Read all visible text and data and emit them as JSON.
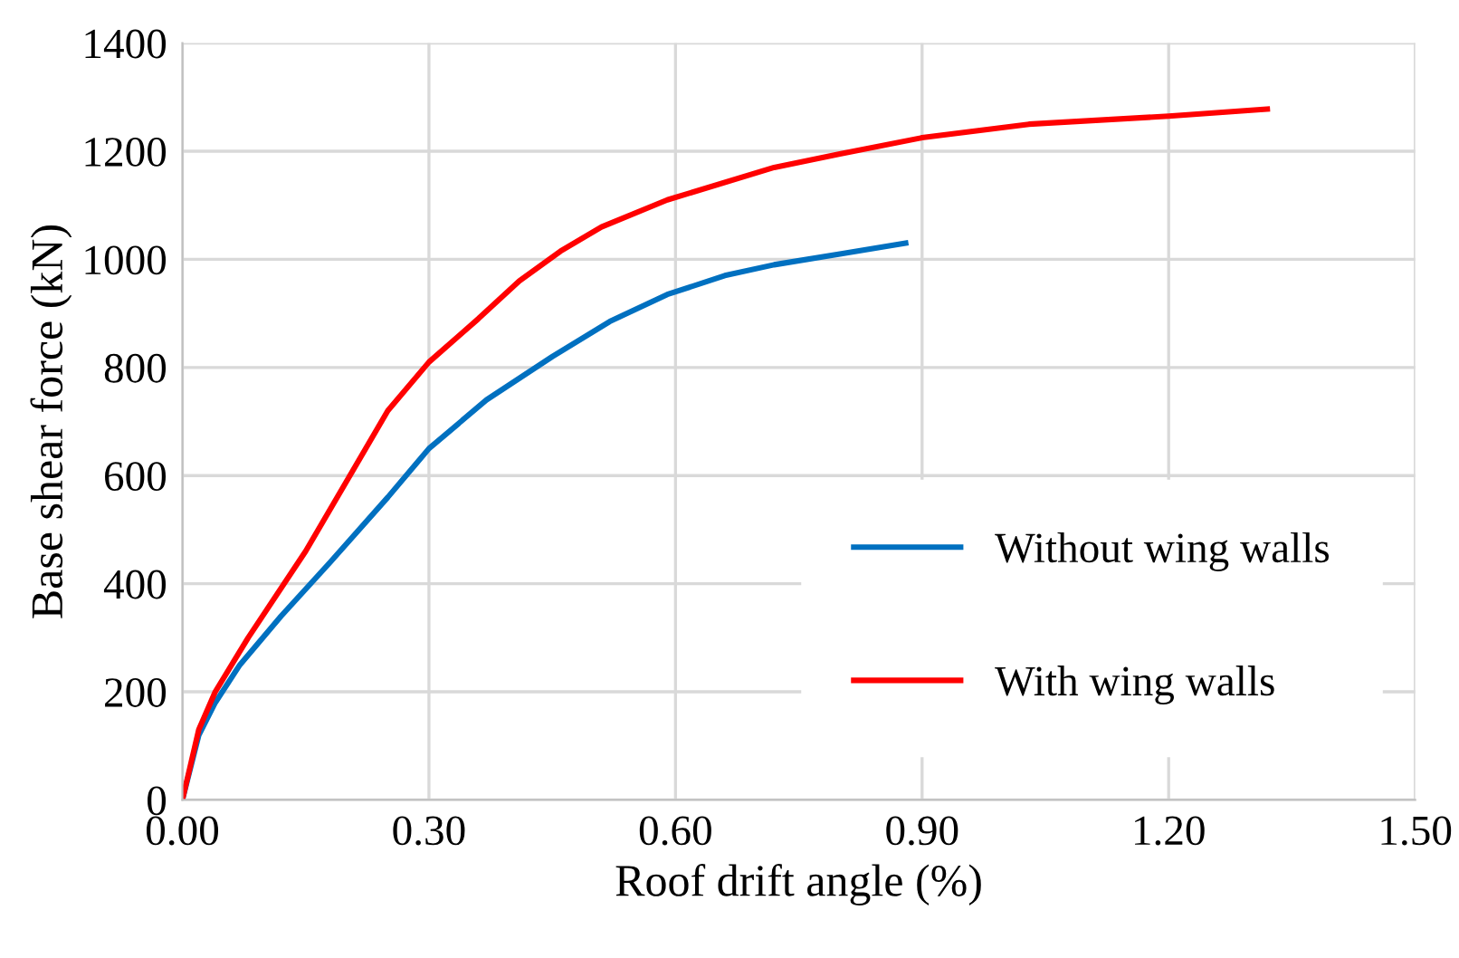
{
  "chart_data": {
    "type": "line",
    "xlabel": "Roof drift angle (%)",
    "ylabel": "Base shear force (kN)",
    "xlim": [
      0,
      1.5
    ],
    "xticks": [
      {
        "value": 0,
        "label": "0.00"
      },
      {
        "value": 0.3,
        "label": "0.30"
      },
      {
        "value": 0.6,
        "label": "0.60"
      },
      {
        "value": 0.9,
        "label": "0.90"
      },
      {
        "value": 1.2,
        "label": "1.20"
      },
      {
        "value": 1.5,
        "label": "1.50"
      }
    ],
    "ylim": [
      0,
      1400
    ],
    "yticks": [
      0,
      200,
      400,
      600,
      800,
      1000,
      1200,
      1400
    ],
    "grid": true,
    "legend": "bottom right",
    "marker": "none",
    "line_style": "solid",
    "series": [
      {
        "name": "Without wing walls",
        "color": "#0070c0",
        "x": [
          0,
          0.02,
          0.04,
          0.07,
          0.12,
          0.18,
          0.25,
          0.3,
          0.37,
          0.45,
          0.52,
          0.59,
          0.66,
          0.72,
          0.8,
          0.88
        ],
        "values": [
          0,
          120,
          180,
          250,
          340,
          440,
          560,
          650,
          740,
          820,
          885,
          935,
          970,
          990,
          1010,
          1030
        ]
      },
      {
        "name": "With wing walls",
        "color": "#ff0000",
        "x": [
          0,
          0.02,
          0.04,
          0.08,
          0.15,
          0.25,
          0.3,
          0.36,
          0.41,
          0.46,
          0.51,
          0.59,
          0.72,
          0.8,
          0.9,
          1.03,
          1.2,
          1.32
        ],
        "values": [
          0,
          130,
          200,
          300,
          460,
          720,
          810,
          890,
          960,
          1015,
          1060,
          1110,
          1170,
          1195,
          1225,
          1250,
          1265,
          1278
        ]
      }
    ]
  }
}
